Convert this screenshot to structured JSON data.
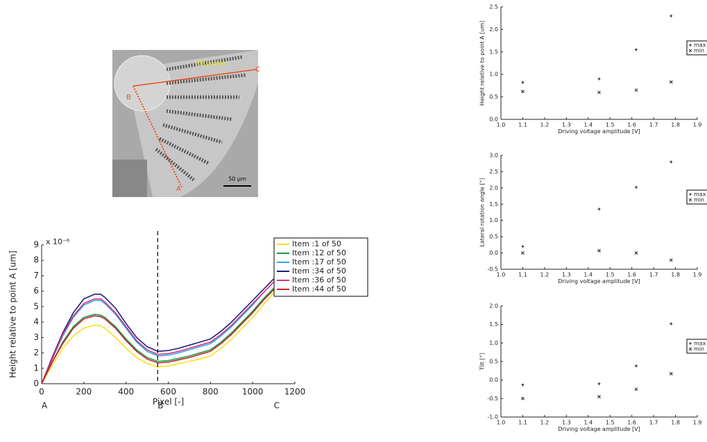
{
  "micrograph": {
    "labels": [
      "eff profile",
      "C",
      "B",
      "A",
      "50 µm"
    ]
  },
  "chart_data": [
    {
      "type": "line",
      "ylabel": "Height relative to point A [um]",
      "xlabel": "Pixel [-]",
      "y_multiplier": "x 10⁻⁶",
      "x": [
        0,
        50,
        100,
        150,
        200,
        250,
        280,
        300,
        350,
        400,
        450,
        500,
        550,
        600,
        650,
        700,
        750,
        800,
        850,
        900,
        950,
        1000,
        1050,
        1100
      ],
      "series": [
        {
          "name": "Item :1 of 50",
          "color": "#f5e21b",
          "values": [
            0,
            1.2,
            2.3,
            3.1,
            3.6,
            3.8,
            3.75,
            3.6,
            3.0,
            2.3,
            1.7,
            1.3,
            1.1,
            1.15,
            1.3,
            1.45,
            1.6,
            1.8,
            2.3,
            2.9,
            3.6,
            4.3,
            5.1,
            5.9
          ]
        },
        {
          "name": "Item :12 of 50",
          "color": "#1a9a4a",
          "values": [
            0,
            1.4,
            2.7,
            3.7,
            4.3,
            4.5,
            4.45,
            4.3,
            3.7,
            2.9,
            2.2,
            1.7,
            1.45,
            1.5,
            1.65,
            1.8,
            2.0,
            2.2,
            2.7,
            3.3,
            4.0,
            4.7,
            5.5,
            6.2
          ]
        },
        {
          "name": "Item :17 of 50",
          "color": "#2aa6e8",
          "values": [
            0,
            1.6,
            3.1,
            4.3,
            5.1,
            5.4,
            5.4,
            5.2,
            4.5,
            3.6,
            2.7,
            2.1,
            1.8,
            1.85,
            2.0,
            2.2,
            2.4,
            2.6,
            3.1,
            3.7,
            4.4,
            5.1,
            5.9,
            6.6
          ]
        },
        {
          "name": "Item :34 of 50",
          "color": "#1c1f7a",
          "values": [
            0,
            1.7,
            3.3,
            4.6,
            5.5,
            5.8,
            5.8,
            5.6,
            4.9,
            3.9,
            3.0,
            2.4,
            2.1,
            2.15,
            2.3,
            2.5,
            2.7,
            2.9,
            3.4,
            4.0,
            4.7,
            5.4,
            6.1,
            6.8
          ]
        },
        {
          "name": "Item :36 of 50",
          "color": "#e0307a",
          "values": [
            0,
            1.6,
            3.2,
            4.4,
            5.2,
            5.5,
            5.5,
            5.3,
            4.6,
            3.7,
            2.8,
            2.2,
            1.9,
            1.95,
            2.1,
            2.3,
            2.5,
            2.7,
            3.2,
            3.8,
            4.5,
            5.2,
            5.9,
            6.6
          ]
        },
        {
          "name": "Item :44 of 50",
          "color": "#c8202a",
          "values": [
            0,
            1.4,
            2.6,
            3.6,
            4.2,
            4.4,
            4.35,
            4.2,
            3.6,
            2.8,
            2.1,
            1.6,
            1.35,
            1.4,
            1.55,
            1.7,
            1.9,
            2.1,
            2.6,
            3.2,
            3.9,
            4.6,
            5.4,
            6.1
          ]
        }
      ],
      "xlim": [
        0,
        1200
      ],
      "xticks": [
        0,
        200,
        400,
        600,
        800,
        1000,
        1200
      ],
      "ylim": [
        0,
        9
      ],
      "yticks": [
        0,
        1,
        2,
        3,
        4,
        5,
        6,
        7,
        8,
        9
      ],
      "x_annotations": [
        {
          "value": 0,
          "label": "A"
        },
        {
          "value": 550,
          "label": "B"
        },
        {
          "value": 1100,
          "label": "C"
        }
      ],
      "vline": 550,
      "legend": "upper right"
    },
    {
      "type": "scatter",
      "ylabel": "Height relative to point A [um]",
      "xlabel": "Driving voltage amplitude [V]",
      "x": [
        1.1,
        1.45,
        1.62,
        1.78
      ],
      "series": [
        {
          "name": "max",
          "marker": "+",
          "color": "#333",
          "values": [
            0.82,
            0.9,
            1.55,
            2.3
          ]
        },
        {
          "name": "min",
          "marker": "x",
          "color": "#333",
          "values": [
            0.62,
            0.6,
            0.65,
            0.83
          ]
        }
      ],
      "xlim": [
        1.0,
        1.9
      ],
      "xticks": [
        {
          "value": 1.0,
          "label": "1.0"
        },
        1.1,
        1.2,
        1.3,
        1.4,
        1.5,
        1.6,
        1.7,
        1.8,
        1.9
      ],
      "ylim": [
        0,
        2.5
      ],
      "yticks": [
        {
          "value": 0,
          "label": "0.0"
        },
        0.5,
        {
          "value": 1,
          "label": "1.0"
        },
        1.5,
        {
          "value": 2,
          "label": "2.0"
        },
        2.5
      ],
      "legend": "right"
    },
    {
      "type": "scatter",
      "ylabel": "Lateral rotation angle [°]",
      "xlabel": "Driving voltage amplitude [V]",
      "x": [
        1.1,
        1.45,
        1.62,
        1.78
      ],
      "series": [
        {
          "name": "max",
          "marker": "+",
          "color": "#333",
          "values": [
            0.2,
            1.35,
            2.02,
            2.8
          ]
        },
        {
          "name": "min",
          "marker": "x",
          "color": "#333",
          "values": [
            0.0,
            0.07,
            0.0,
            -0.22
          ]
        }
      ],
      "xlim": [
        1.0,
        1.9
      ],
      "xticks": [
        {
          "value": 1.0,
          "label": "1.0"
        },
        1.1,
        1.2,
        1.3,
        1.4,
        1.5,
        1.6,
        1.7,
        1.8,
        1.9
      ],
      "ylim": [
        -0.5,
        3.0
      ],
      "yticks": [
        -0.5,
        {
          "value": 0,
          "label": "0.0"
        },
        0.5,
        {
          "value": 1,
          "label": "1.0"
        },
        1.5,
        {
          "value": 2,
          "label": "2.0"
        },
        2.5,
        {
          "value": 3,
          "label": "3.0"
        }
      ],
      "legend": "right"
    },
    {
      "type": "scatter",
      "ylabel": "Tilt [°]",
      "xlabel": "Driving voltage amplitude [V]",
      "x": [
        1.1,
        1.45,
        1.62,
        1.78
      ],
      "series": [
        {
          "name": "max",
          "marker": "+",
          "color": "#333",
          "values": [
            -0.13,
            -0.1,
            0.38,
            1.52
          ]
        },
        {
          "name": "min",
          "marker": "x",
          "color": "#333",
          "values": [
            -0.5,
            -0.45,
            -0.25,
            0.17
          ]
        }
      ],
      "xlim": [
        1.0,
        1.9
      ],
      "xticks": [
        {
          "value": 1.0,
          "label": "1.0"
        },
        1.1,
        1.2,
        1.3,
        1.4,
        1.5,
        1.6,
        1.7,
        1.8,
        1.9
      ],
      "ylim": [
        -1.0,
        2.0
      ],
      "yticks": [
        {
          "value": -1,
          "label": "-1.0"
        },
        -0.5,
        {
          "value": 0,
          "label": "0.0"
        },
        0.5,
        {
          "value": 1,
          "label": "1.0"
        },
        1.5,
        {
          "value": 2,
          "label": "2.0"
        }
      ],
      "legend": "right"
    }
  ]
}
